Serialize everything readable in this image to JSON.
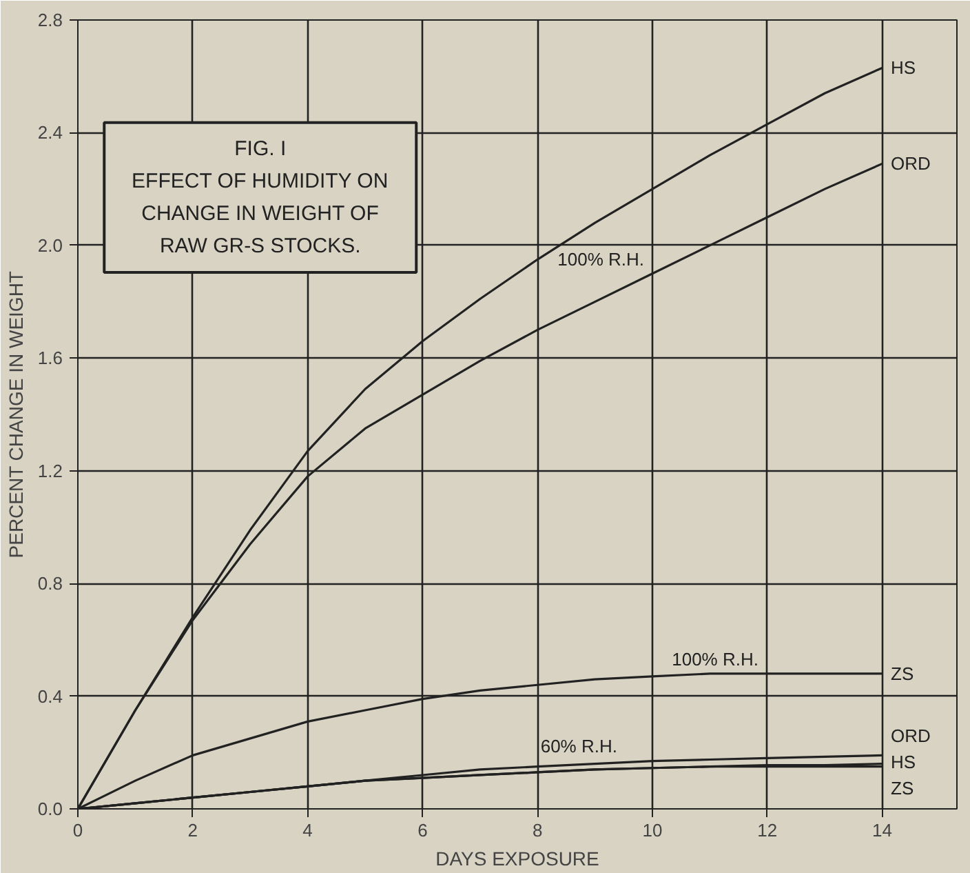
{
  "chart_data": {
    "type": "line",
    "title": "FIG. I",
    "subtitle": "EFFECT OF HUMIDITY ON CHANGE IN WEIGHT OF RAW GR-S STOCKS.",
    "xlabel": "DAYS EXPOSURE",
    "ylabel": "PERCENT CHANGE IN WEIGHT",
    "x": [
      0,
      1,
      2,
      3,
      4,
      5,
      6,
      7,
      8,
      9,
      10,
      11,
      12,
      13,
      14
    ],
    "series": [
      {
        "name": "HS",
        "color": "#222222",
        "values": [
          0,
          0.35,
          0.68,
          0.99,
          1.27,
          1.49,
          1.66,
          1.81,
          1.95,
          2.08,
          2.2,
          2.32,
          2.43,
          2.54,
          2.63
        ]
      },
      {
        "name": "ORD",
        "color": "#222222",
        "values": [
          0,
          0.35,
          0.67,
          0.94,
          1.18,
          1.35,
          1.47,
          1.59,
          1.7,
          1.8,
          1.9,
          2.0,
          2.1,
          2.2,
          2.29
        ]
      },
      {
        "name": "ZS",
        "color": "#222222",
        "values": [
          0,
          0.1,
          0.19,
          0.25,
          0.31,
          0.35,
          0.39,
          0.42,
          0.44,
          0.46,
          0.47,
          0.48,
          0.48,
          0.48,
          0.48
        ]
      },
      {
        "name": "ORD",
        "color": "#222222",
        "values": [
          0,
          0.02,
          0.04,
          0.06,
          0.08,
          0.1,
          0.12,
          0.14,
          0.15,
          0.16,
          0.17,
          0.175,
          0.18,
          0.185,
          0.19
        ]
      },
      {
        "name": "HS",
        "color": "#222222",
        "values": [
          0,
          0.02,
          0.04,
          0.06,
          0.08,
          0.1,
          0.11,
          0.12,
          0.13,
          0.14,
          0.145,
          0.15,
          0.155,
          0.155,
          0.16
        ]
      },
      {
        "name": "ZS",
        "color": "#222222",
        "values": [
          0,
          0.02,
          0.04,
          0.06,
          0.08,
          0.1,
          0.11,
          0.12,
          0.13,
          0.14,
          0.145,
          0.15,
          0.15,
          0.15,
          0.15
        ]
      }
    ],
    "annotations": [
      "100% R.H.",
      "100% R.H.",
      "60% R.H."
    ],
    "xlim": [
      0,
      15.3
    ],
    "ylim": [
      0,
      2.8
    ],
    "xticks": [
      0,
      2,
      4,
      6,
      8,
      10,
      12,
      14
    ],
    "yticks": [
      {
        "value": 0,
        "label": "0.0"
      },
      0.4,
      0.8,
      1.2,
      1.6,
      {
        "value": 2,
        "label": "2.0"
      },
      2.4,
      2.8
    ],
    "grid": true,
    "marker": "none",
    "line_style": "solid"
  }
}
